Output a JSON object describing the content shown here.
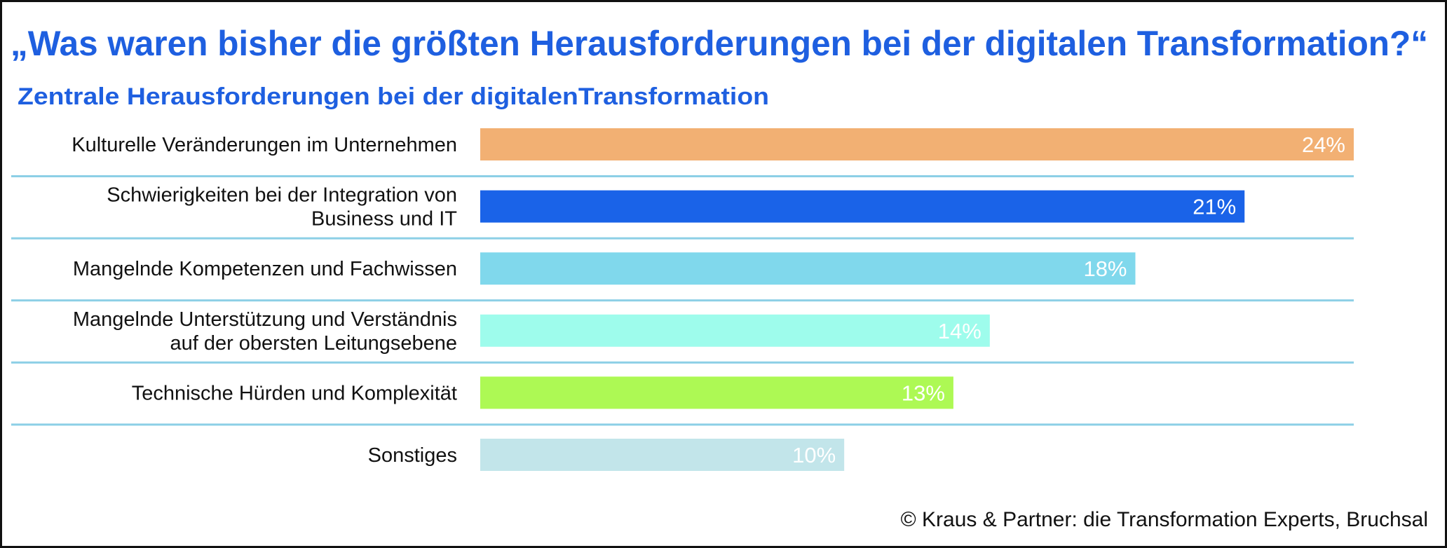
{
  "title": "„Was waren bisher die größten Herausforderungen bei der digitalen Transformation?“",
  "footer": "© Kraus & Partner: die Transformation Experts, Bruchsal",
  "chart_data": {
    "type": "bar",
    "orientation": "horizontal",
    "title": "Zentrale Herausforderungen bei der digitalenTransformation",
    "xlabel": "",
    "ylabel": "",
    "xlim": [
      0,
      24
    ],
    "grid": false,
    "categories": [
      [
        "Kulturelle Veränderungen im Unternehmen"
      ],
      [
        "Schwierigkeiten bei der Integration von",
        "Business und IT"
      ],
      [
        "Mangelnde Kompetenzen und Fachwissen"
      ],
      [
        "Mangelnde Unterstützung und Verständnis",
        "auf der obersten Leitungsebene"
      ],
      [
        "Technische Hürden und Komplexität"
      ],
      [
        "Sonstiges"
      ]
    ],
    "values": [
      24,
      21,
      18,
      14,
      13,
      10
    ],
    "value_labels": [
      "24%",
      "21%",
      "18%",
      "14%",
      "13%",
      "10%"
    ],
    "colors": [
      "#F2B073",
      "#1A63E8",
      "#80D8EC",
      "#9EFCEC",
      "#ADF954",
      "#C2E5EA"
    ],
    "separator_color": "#8CCFE6"
  }
}
